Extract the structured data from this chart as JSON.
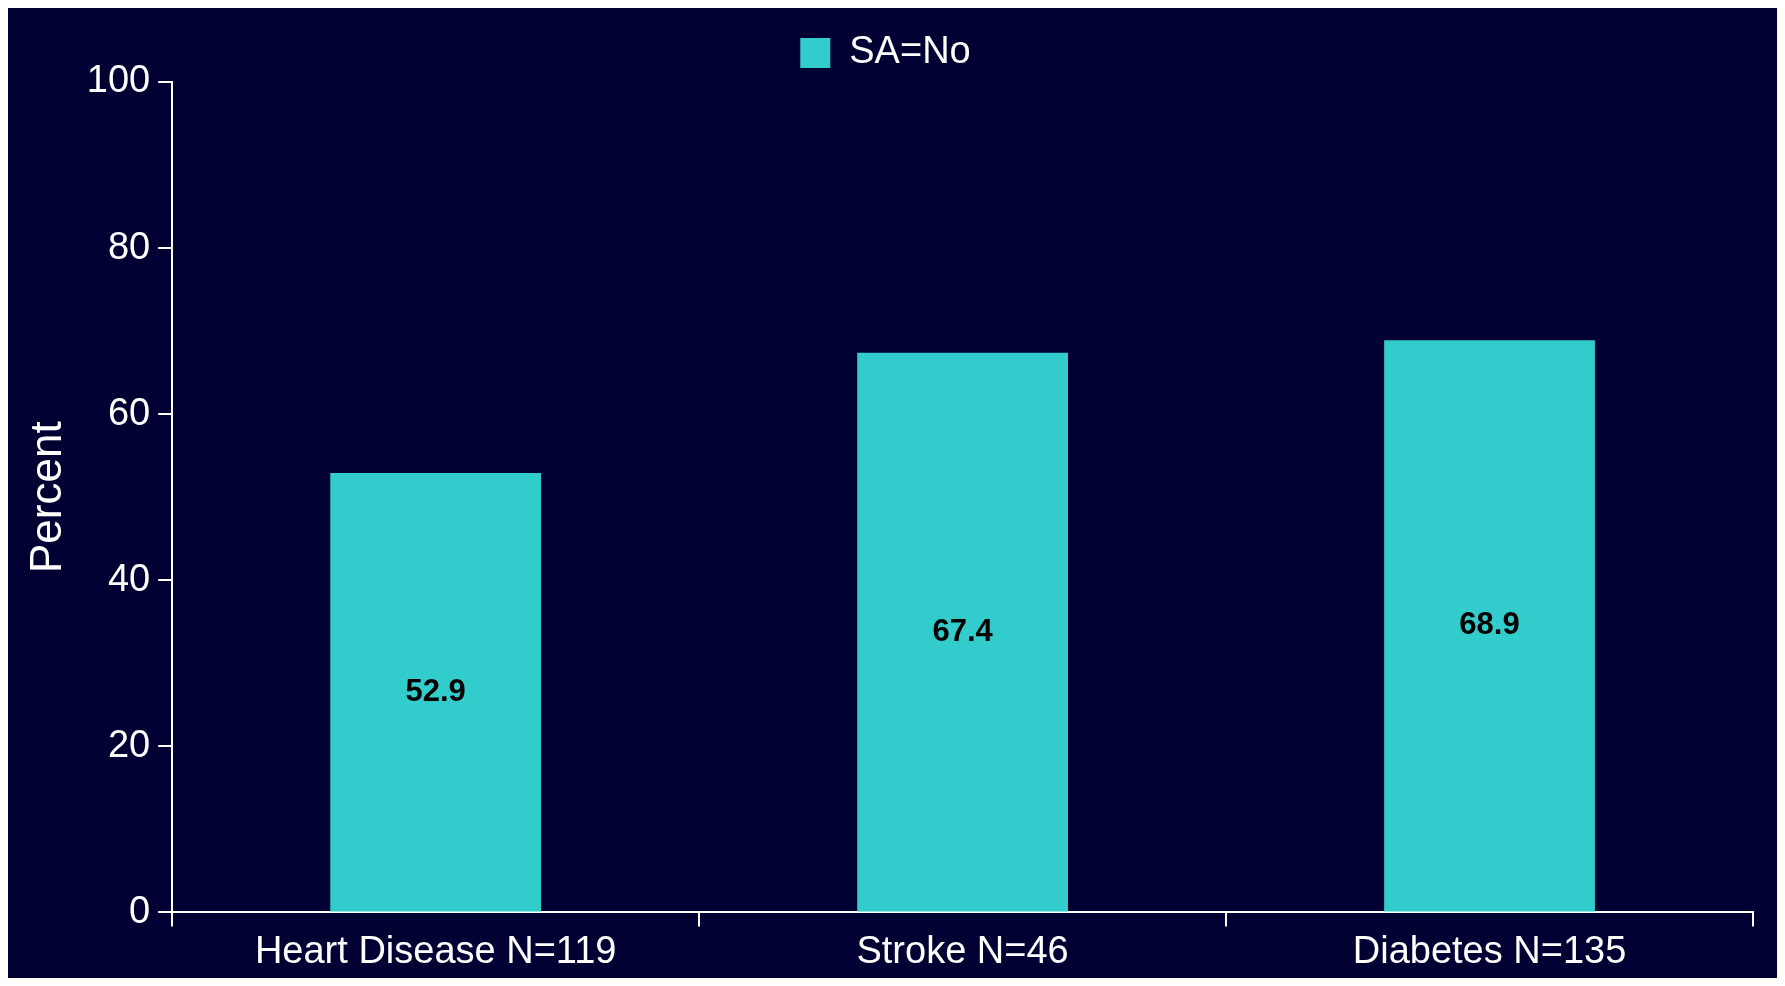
{
  "chart_data": {
    "type": "bar",
    "categories": [
      "Heart Disease N=119",
      "Stroke N=46",
      "Diabetes N=135"
    ],
    "series": [
      {
        "name": "SA=No",
        "color": "#33cccc",
        "values": [
          52.9,
          67.4,
          68.9
        ]
      }
    ],
    "ylabel": "Percent",
    "ylim": [
      0,
      100
    ],
    "yticks": [
      0,
      20,
      40,
      60,
      80,
      100
    ],
    "grid": false,
    "legend": "top",
    "data_labels": true
  }
}
